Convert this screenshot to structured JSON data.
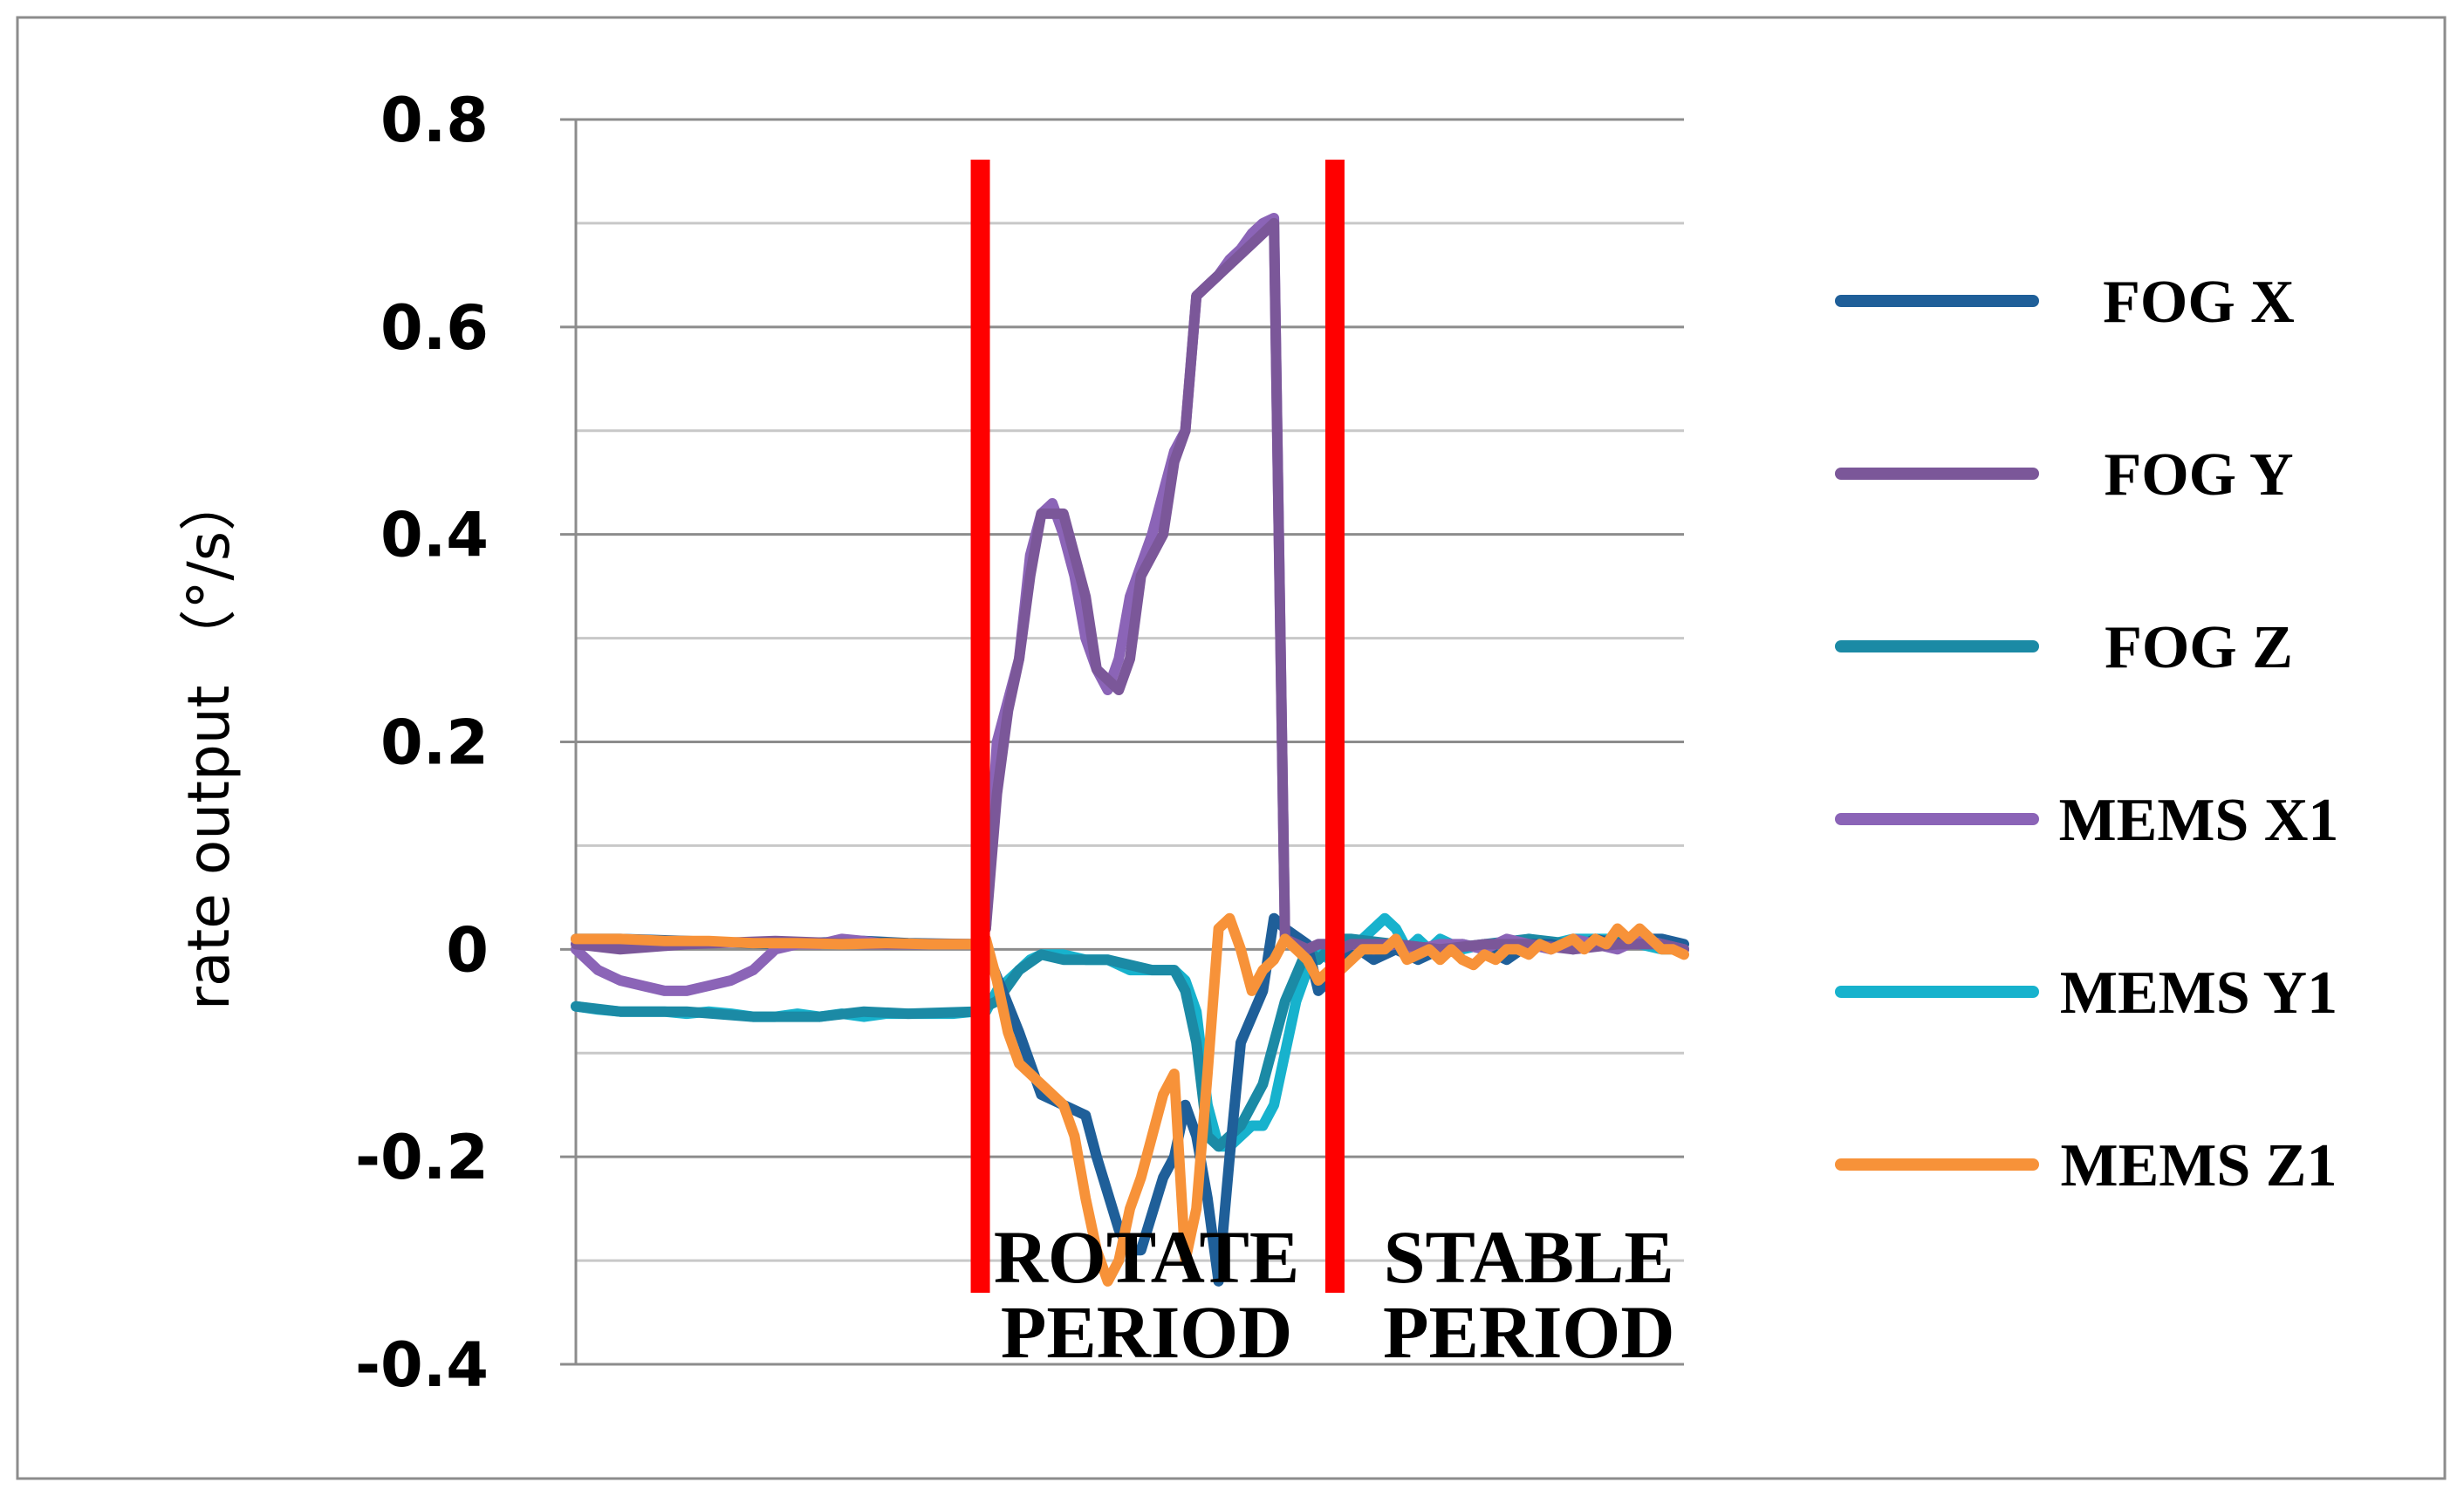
{
  "chart_data": {
    "type": "line",
    "title": "",
    "xlabel": "",
    "ylabel": "rate output （°/s）",
    "ylim": [
      -0.4,
      0.8
    ],
    "xlim": [
      0,
      100
    ],
    "yticks": [
      {
        "value": 0.8,
        "label": "0.8"
      },
      {
        "value": 0.6,
        "label": "0.6"
      },
      {
        "value": 0.4,
        "label": "0.4"
      },
      {
        "value": 0.2,
        "label": "0.2"
      },
      {
        "value": 0,
        "label": "0"
      },
      {
        "value": -0.2,
        "label": "-0.2"
      },
      {
        "value": -0.4,
        "label": "-0.4"
      }
    ],
    "minor_gridlines": [
      0.7,
      0.5,
      0.3,
      0.1,
      -0.1,
      -0.3
    ],
    "grid": true,
    "legend_position": "right",
    "annotations": {
      "markers": [
        {
          "x": 36.5,
          "color": "#ff0000"
        },
        {
          "x": 68.5,
          "color": "#ff0000"
        }
      ],
      "labels": [
        {
          "lines": [
            "ROTATE",
            "PERIOD"
          ],
          "x": 51.5
        },
        {
          "lines": [
            "STABLE",
            "PERIOD"
          ],
          "x": 86
        }
      ]
    },
    "series": [
      {
        "name": "FOG X",
        "color": "#1f5f99",
        "x": [
          0,
          4,
          10,
          18,
          26,
          30,
          36,
          37,
          40,
          42,
          44,
          46,
          47,
          49,
          50,
          51,
          53,
          54,
          55,
          56,
          57,
          58,
          59,
          60,
          62,
          63,
          64,
          66,
          67,
          68,
          69,
          70,
          72,
          74,
          76,
          78,
          80,
          82,
          84,
          86,
          88,
          90,
          92,
          94,
          96,
          98,
          100
        ],
        "y": [
          0.01,
          0.01,
          0.008,
          0.005,
          0.008,
          0.006,
          0.005,
          0.0,
          -0.08,
          -0.14,
          -0.15,
          -0.16,
          -0.2,
          -0.27,
          -0.29,
          -0.29,
          -0.22,
          -0.2,
          -0.15,
          -0.18,
          -0.24,
          -0.32,
          -0.2,
          -0.09,
          -0.04,
          0.03,
          0.02,
          0.005,
          -0.04,
          -0.03,
          -0.02,
          0.005,
          -0.01,
          0.0,
          -0.01,
          0.0,
          0.005,
          0.0,
          -0.01,
          0.005,
          0.005,
          0.0,
          0.01,
          0.005,
          0.01,
          0.01,
          0.005
        ]
      },
      {
        "name": "FOG Y",
        "color": "#7b5799",
        "x": [
          0,
          4,
          10,
          18,
          26,
          30,
          36,
          37,
          38,
          39,
          40,
          41,
          42,
          44,
          46,
          47,
          49,
          50,
          51,
          53,
          54,
          55,
          56,
          57,
          58,
          59,
          60,
          61,
          62,
          63,
          64,
          65,
          66,
          67,
          68,
          69,
          70,
          74,
          78,
          82,
          86,
          90,
          94,
          98,
          100
        ],
        "y": [
          0.005,
          0.0,
          0.005,
          0.008,
          0.005,
          0.005,
          0.005,
          0.02,
          0.15,
          0.23,
          0.28,
          0.36,
          0.42,
          0.42,
          0.34,
          0.27,
          0.25,
          0.28,
          0.36,
          0.4,
          0.47,
          0.5,
          0.63,
          0.64,
          0.65,
          0.66,
          0.67,
          0.68,
          0.69,
          0.7,
          0.01,
          0.005,
          0.0,
          0.005,
          0.005,
          0.0,
          0.005,
          0.005,
          0.0,
          0.005,
          0.005,
          0.0,
          0.005,
          0.005,
          0.0
        ]
      },
      {
        "name": "FOG Z",
        "color": "#1b8aa5",
        "x": [
          0,
          4,
          10,
          16,
          22,
          26,
          30,
          36,
          38,
          40,
          42,
          44,
          48,
          52,
          54,
          55,
          56,
          57,
          58,
          60,
          62,
          64,
          66,
          67,
          68,
          69,
          70,
          74,
          78,
          82,
          86,
          90,
          94,
          98,
          100
        ],
        "y": [
          -0.055,
          -0.06,
          -0.06,
          -0.065,
          -0.065,
          -0.06,
          -0.062,
          -0.06,
          -0.05,
          -0.02,
          -0.005,
          -0.01,
          -0.01,
          -0.02,
          -0.02,
          -0.04,
          -0.09,
          -0.18,
          -0.19,
          -0.17,
          -0.13,
          -0.05,
          0.0,
          -0.01,
          0.0,
          0.01,
          0.01,
          0.005,
          0.0,
          0.005,
          0.01,
          0.005,
          0.01,
          0.005,
          0.0
        ]
      },
      {
        "name": "MEMS X1",
        "color": "#8b64b7",
        "x": [
          0,
          2,
          4,
          6,
          8,
          10,
          12,
          14,
          16,
          18,
          20,
          22,
          24,
          26,
          28,
          30,
          32,
          34,
          36,
          37,
          38,
          39,
          40,
          41,
          42,
          43,
          44,
          45,
          46,
          47,
          48,
          49,
          50,
          51,
          52,
          53,
          54,
          55,
          56,
          57,
          58,
          59,
          60,
          61,
          62,
          63,
          64,
          65,
          66,
          67,
          68,
          69,
          70,
          72,
          74,
          76,
          78,
          80,
          82,
          84,
          86,
          88,
          90,
          92,
          94,
          96,
          98,
          100
        ],
        "y": [
          0.0,
          -0.02,
          -0.03,
          -0.035,
          -0.04,
          -0.04,
          -0.035,
          -0.03,
          -0.02,
          0.0,
          0.005,
          0.005,
          0.01,
          0.008,
          0.005,
          0.005,
          0.005,
          0.005,
          0.005,
          0.02,
          0.2,
          0.24,
          0.28,
          0.38,
          0.42,
          0.43,
          0.4,
          0.36,
          0.3,
          0.27,
          0.25,
          0.28,
          0.34,
          0.37,
          0.4,
          0.44,
          0.48,
          0.5,
          0.63,
          0.64,
          0.65,
          0.665,
          0.675,
          0.69,
          0.7,
          0.705,
          0.01,
          0.005,
          0.0,
          0.005,
          0.005,
          0.0,
          0.005,
          0.0,
          0.005,
          0.0,
          0.005,
          0.005,
          0.0,
          0.01,
          0.005,
          0.0,
          0.01,
          0.005,
          0.0,
          0.01,
          0.005,
          0.0
        ]
      },
      {
        "name": "MEMS Y1",
        "color": "#17b2cd",
        "x": [
          0,
          2,
          4,
          6,
          8,
          10,
          12,
          14,
          16,
          18,
          20,
          22,
          24,
          26,
          28,
          30,
          32,
          34,
          36,
          37,
          38,
          39,
          40,
          41,
          42,
          44,
          46,
          48,
          50,
          52,
          53,
          54,
          55,
          56,
          57,
          58,
          59,
          60,
          61,
          62,
          63,
          64,
          65,
          66,
          67,
          68,
          69,
          70,
          71,
          72,
          73,
          74,
          75,
          76,
          77,
          78,
          80,
          82,
          84,
          86,
          88,
          90,
          92,
          94,
          96,
          98,
          100
        ],
        "y": [
          -0.055,
          -0.058,
          -0.06,
          -0.06,
          -0.06,
          -0.062,
          -0.06,
          -0.062,
          -0.065,
          -0.065,
          -0.062,
          -0.065,
          -0.062,
          -0.065,
          -0.062,
          -0.062,
          -0.062,
          -0.062,
          -0.06,
          -0.06,
          -0.04,
          -0.03,
          -0.02,
          -0.01,
          -0.005,
          -0.005,
          -0.01,
          -0.01,
          -0.02,
          -0.02,
          -0.02,
          -0.02,
          -0.03,
          -0.06,
          -0.15,
          -0.19,
          -0.19,
          -0.18,
          -0.17,
          -0.17,
          -0.15,
          -0.1,
          -0.05,
          -0.02,
          0.0,
          -0.01,
          0.0,
          0.005,
          0.01,
          0.02,
          0.03,
          0.02,
          0.0,
          0.01,
          0.0,
          0.01,
          0.0,
          0.005,
          0.0,
          0.01,
          0.005,
          0.01,
          0.01,
          0.01,
          0.005,
          0.0,
          0.0
        ]
      },
      {
        "name": "MEMS Z1",
        "color": "#f79239",
        "x": [
          0,
          4,
          8,
          12,
          16,
          20,
          24,
          28,
          32,
          36,
          37,
          38,
          39,
          40,
          41,
          42,
          43,
          44,
          45,
          46,
          47,
          48,
          49,
          50,
          51,
          52,
          53,
          54,
          55,
          56,
          57,
          58,
          59,
          60,
          61,
          62,
          63,
          64,
          65,
          66,
          67,
          68,
          69,
          70,
          71,
          72,
          73,
          74,
          75,
          76,
          77,
          78,
          79,
          80,
          81,
          82,
          83,
          84,
          85,
          86,
          87,
          88,
          89,
          90,
          91,
          92,
          93,
          94,
          95,
          96,
          97,
          98,
          99,
          100
        ],
        "y": [
          0.01,
          0.01,
          0.008,
          0.008,
          0.006,
          0.006,
          0.005,
          0.006,
          0.005,
          0.005,
          0.01,
          -0.03,
          -0.08,
          -0.11,
          -0.12,
          -0.13,
          -0.14,
          -0.15,
          -0.18,
          -0.24,
          -0.29,
          -0.32,
          -0.3,
          -0.25,
          -0.22,
          -0.18,
          -0.14,
          -0.12,
          -0.3,
          -0.25,
          -0.12,
          0.02,
          0.03,
          0.0,
          -0.04,
          -0.02,
          -0.01,
          0.01,
          0.0,
          -0.01,
          -0.03,
          -0.02,
          -0.02,
          -0.01,
          0.0,
          0.0,
          0.0,
          0.01,
          -0.01,
          -0.005,
          0.0,
          -0.01,
          0.0,
          -0.01,
          -0.015,
          -0.005,
          -0.01,
          0.0,
          0.0,
          -0.005,
          0.005,
          0.0,
          0.005,
          0.01,
          0.0,
          0.01,
          0.005,
          0.02,
          0.01,
          0.02,
          0.01,
          0.0,
          0.0,
          -0.005
        ]
      }
    ]
  }
}
